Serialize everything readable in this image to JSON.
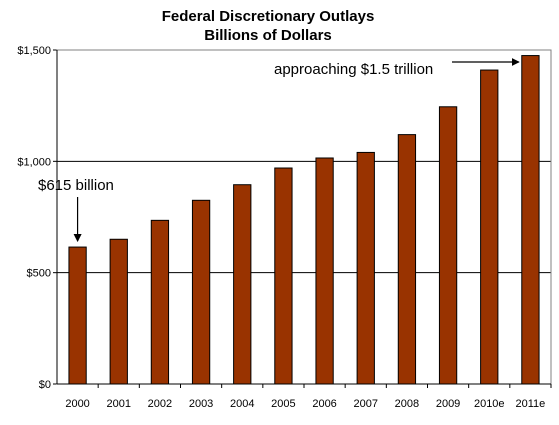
{
  "chart_data": {
    "type": "bar",
    "title": "Federal Discretionary Outlays",
    "subtitle": "Billions of Dollars",
    "categories": [
      "2000",
      "2001",
      "2002",
      "2003",
      "2004",
      "2005",
      "2006",
      "2007",
      "2008",
      "2009",
      "2010e",
      "2011e"
    ],
    "values": [
      615,
      650,
      735,
      825,
      895,
      970,
      1015,
      1040,
      1120,
      1245,
      1410,
      1475
    ],
    "ylim": [
      0,
      1500
    ],
    "yticks": [
      0,
      500,
      1000,
      1500
    ],
    "ytick_labels": [
      "$0",
      "$500",
      "$1,000",
      "$1,500"
    ],
    "grid": true,
    "bar_color": "#993300",
    "annotations": [
      {
        "text": "$615 billion",
        "category": "2000"
      },
      {
        "text": "approaching $1.5 trillion",
        "category": "2011e"
      }
    ]
  }
}
